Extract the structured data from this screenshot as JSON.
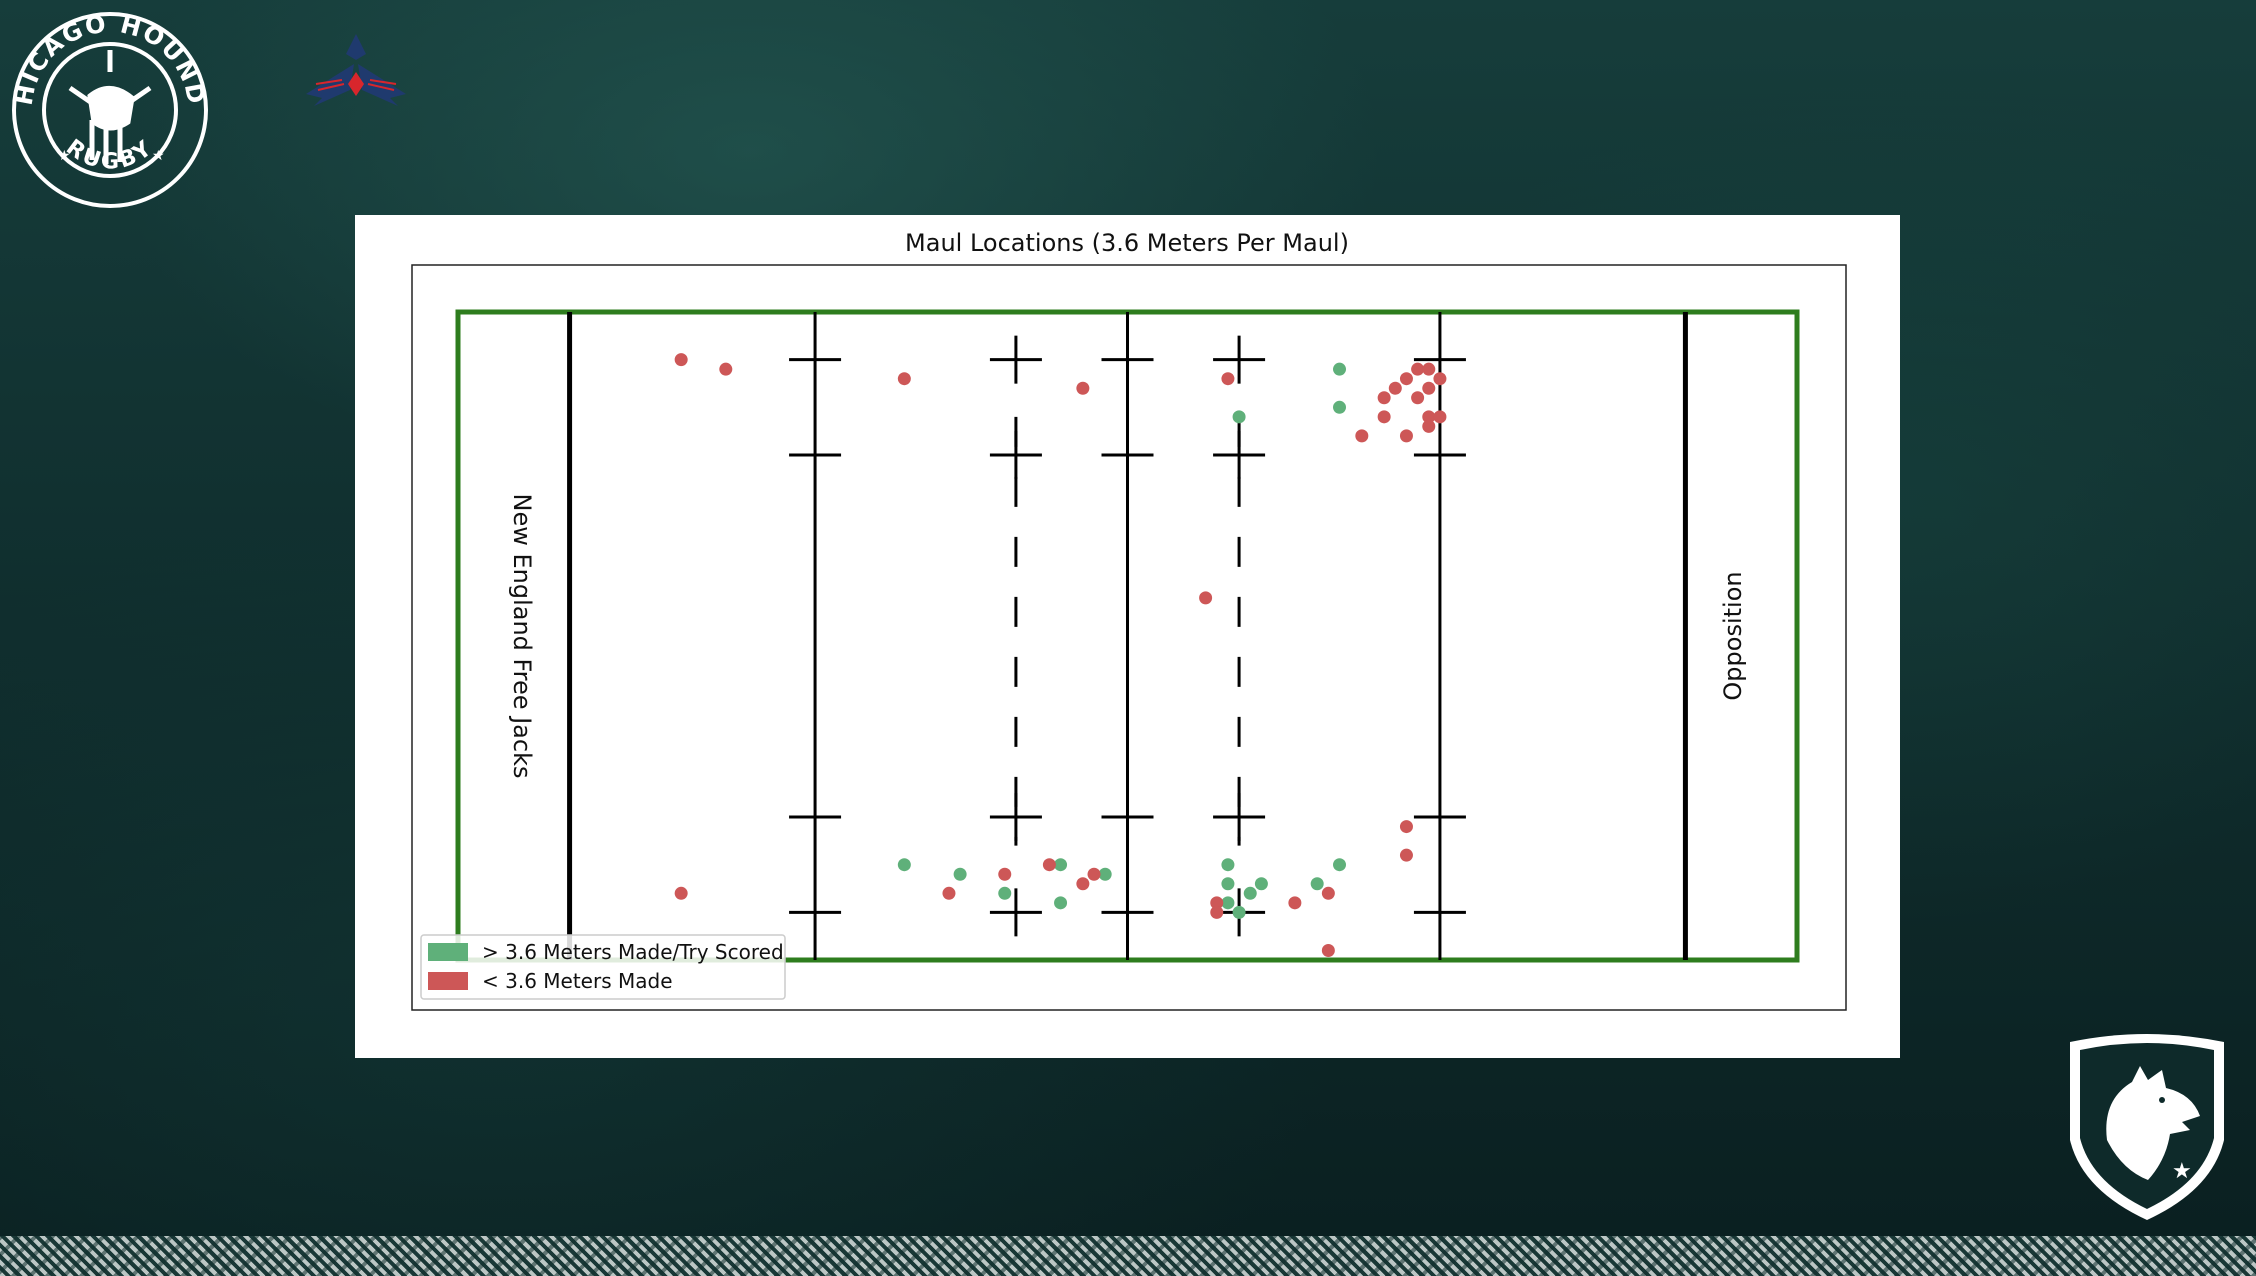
{
  "branding": {
    "crest_text_top": "CHICAGO HOUNDS",
    "crest_text_bottom": "RUGBY",
    "crest_icon": "hound-head-icon",
    "partner_logo_icon": "winged-emblem-icon",
    "shield_logo_icon": "wolf-shield-icon"
  },
  "colors": {
    "background": "#123433",
    "pitch_border": "#2e7d1e",
    "green_points": "#5fb07a",
    "red_points": "#cd5757"
  },
  "chart_data": {
    "type": "scatter",
    "title": "Maul Locations (3.6 Meters Per Maul)",
    "xlabel": "",
    "ylabel": "",
    "xlim": [
      -10,
      110
    ],
    "ylim": [
      0,
      68
    ],
    "grid": false,
    "legend_position": "bottom-left",
    "ends": {
      "left": "New England Free Jacks",
      "right": "Opposition"
    },
    "series": [
      {
        "name": "> 3.6 Meters Made/Try Scored",
        "color": "#5fb07a",
        "points": [
          [
            69,
            58
          ],
          [
            69,
            62
          ],
          [
            59,
            8
          ],
          [
            60,
            57
          ],
          [
            59,
            6
          ],
          [
            59,
            10
          ],
          [
            44,
            6
          ],
          [
            44,
            10
          ],
          [
            48,
            9
          ],
          [
            60,
            5
          ],
          [
            61,
            7
          ],
          [
            62,
            8
          ],
          [
            67,
            8
          ],
          [
            69,
            10
          ],
          [
            30,
            10
          ],
          [
            39,
            7
          ],
          [
            35,
            9
          ]
        ]
      },
      {
        "name": "< 3.6 Meters Made",
        "color": "#cd5757",
        "points": [
          [
            10,
            63
          ],
          [
            14,
            62
          ],
          [
            30,
            61
          ],
          [
            46,
            60
          ],
          [
            59,
            61
          ],
          [
            57,
            38
          ],
          [
            76,
            62
          ],
          [
            77,
            62
          ],
          [
            75,
            61
          ],
          [
            78,
            61
          ],
          [
            74,
            60
          ],
          [
            77,
            60
          ],
          [
            73,
            59
          ],
          [
            76,
            59
          ],
          [
            73,
            57
          ],
          [
            77,
            57
          ],
          [
            78,
            57
          ],
          [
            77,
            56
          ],
          [
            71,
            55
          ],
          [
            75,
            55
          ],
          [
            10,
            7
          ],
          [
            46,
            8
          ],
          [
            47,
            9
          ],
          [
            43,
            10
          ],
          [
            39,
            9
          ],
          [
            34,
            7
          ],
          [
            58,
            6
          ],
          [
            58,
            5
          ],
          [
            65,
            6
          ],
          [
            68,
            7
          ],
          [
            75,
            14
          ],
          [
            75,
            11
          ],
          [
            68,
            1
          ]
        ]
      }
    ]
  }
}
